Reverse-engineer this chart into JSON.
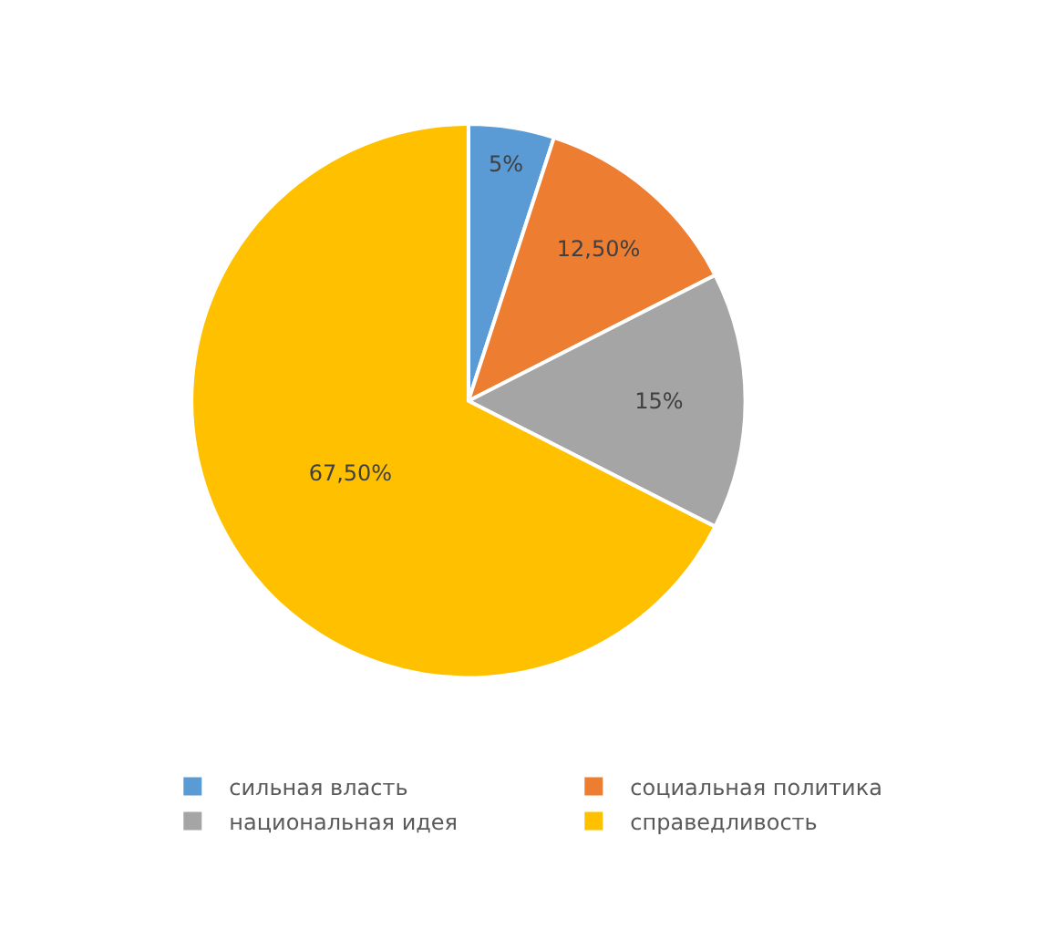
{
  "chart_data": {
    "type": "pie",
    "categories": [
      "сильная власть",
      "социальная политика",
      "национальная идея",
      "справедливость"
    ],
    "values": [
      5,
      12.5,
      15,
      67.5
    ],
    "value_labels": [
      "5%",
      "12,50%",
      "15%",
      "67,50%"
    ],
    "colors": [
      "#5b9bd5",
      "#ed7d31",
      "#a5a5a5",
      "#ffc000"
    ],
    "legend": "bottom"
  }
}
